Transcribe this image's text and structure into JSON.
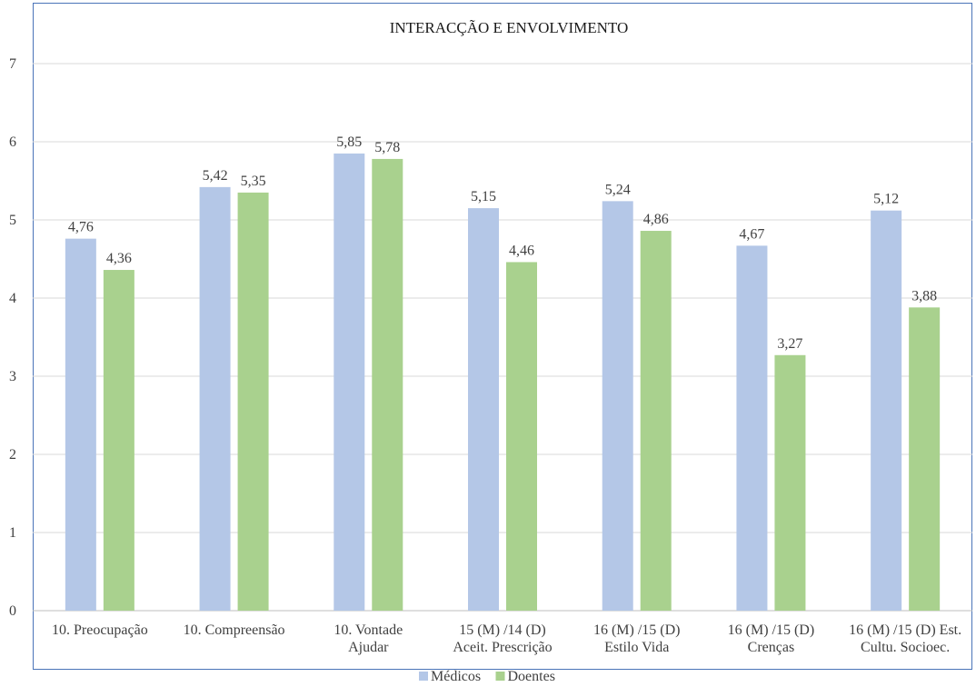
{
  "chart_data": {
    "type": "bar",
    "title": "INTERACÇÃO E ENVOLVIMENTO",
    "xlabel": "",
    "ylabel": "",
    "ylim": [
      0,
      7
    ],
    "yticks": [
      0,
      1,
      2,
      3,
      4,
      5,
      6,
      7
    ],
    "grid": true,
    "legend_position": "bottom",
    "categories": [
      [
        "10. Preocupação"
      ],
      [
        "10. Compreensão"
      ],
      [
        "10. Vontade",
        "Ajudar"
      ],
      [
        "15 (M) /14 (D)",
        "Aceit. Prescrição"
      ],
      [
        "16 (M) /15 (D)",
        "Estilo Vida"
      ],
      [
        "16 (M) /15 (D)",
        "Crenças"
      ],
      [
        "16 (M) /15 (D) Est.",
        "Cultu. Socioec."
      ]
    ],
    "series": [
      {
        "name": "Médicos",
        "color": "#b4c7e7",
        "values": [
          4.76,
          5.42,
          5.85,
          5.15,
          5.24,
          4.67,
          5.12
        ],
        "labels": [
          "4,76",
          "5,42",
          "5,85",
          "5,15",
          "5,24",
          "4,67",
          "5,12"
        ]
      },
      {
        "name": "Doentes",
        "color": "#a9d18e",
        "values": [
          4.36,
          5.35,
          5.78,
          4.46,
          4.86,
          3.27,
          3.88
        ],
        "labels": [
          "4,36",
          "5,35",
          "5,78",
          "4,46",
          "4,86",
          "3,27",
          "3,88"
        ]
      }
    ]
  }
}
